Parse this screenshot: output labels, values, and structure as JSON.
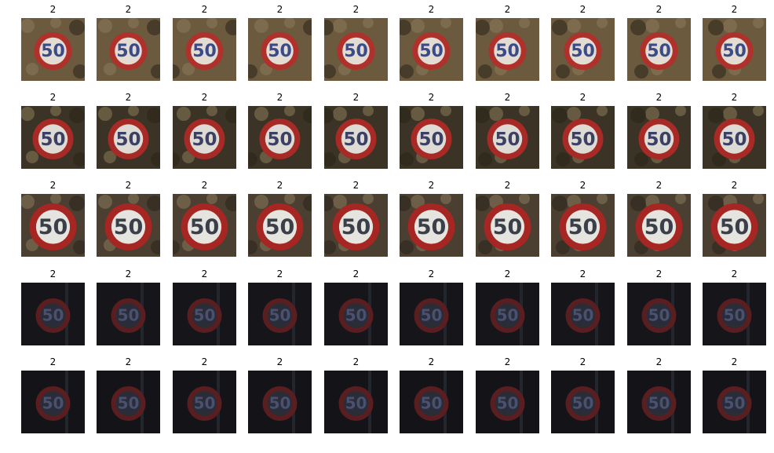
{
  "figure": {
    "rows": [
      {
        "brightness": "bright-noisy",
        "bg": "#6b5a3e",
        "items": [
          {
            "label": "2",
            "sign_text": "50"
          },
          {
            "label": "2",
            "sign_text": "50"
          },
          {
            "label": "2",
            "sign_text": "50"
          },
          {
            "label": "2",
            "sign_text": "50"
          },
          {
            "label": "2",
            "sign_text": "50"
          },
          {
            "label": "2",
            "sign_text": "50"
          },
          {
            "label": "2",
            "sign_text": "50"
          },
          {
            "label": "2",
            "sign_text": "50"
          },
          {
            "label": "2",
            "sign_text": "50"
          },
          {
            "label": "2",
            "sign_text": "50"
          }
        ]
      },
      {
        "brightness": "bright",
        "bg": "#3b3325",
        "items": [
          {
            "label": "2",
            "sign_text": "50"
          },
          {
            "label": "2",
            "sign_text": "50"
          },
          {
            "label": "2",
            "sign_text": "50"
          },
          {
            "label": "2",
            "sign_text": "50"
          },
          {
            "label": "2",
            "sign_text": "50"
          },
          {
            "label": "2",
            "sign_text": "50"
          },
          {
            "label": "2",
            "sign_text": "50"
          },
          {
            "label": "2",
            "sign_text": "50"
          },
          {
            "label": "2",
            "sign_text": "50"
          },
          {
            "label": "2",
            "sign_text": "50"
          }
        ]
      },
      {
        "brightness": "bright-large",
        "bg": "#4a3f31",
        "items": [
          {
            "label": "2",
            "sign_text": "50"
          },
          {
            "label": "2",
            "sign_text": "50"
          },
          {
            "label": "2",
            "sign_text": "50"
          },
          {
            "label": "2",
            "sign_text": "50"
          },
          {
            "label": "2",
            "sign_text": "50"
          },
          {
            "label": "2",
            "sign_text": "50"
          },
          {
            "label": "2",
            "sign_text": "50"
          },
          {
            "label": "2",
            "sign_text": "50"
          },
          {
            "label": "2",
            "sign_text": "50"
          },
          {
            "label": "2",
            "sign_text": "50"
          }
        ]
      },
      {
        "brightness": "dark",
        "bg": "#16161a",
        "items": [
          {
            "label": "2",
            "sign_text": "50"
          },
          {
            "label": "2",
            "sign_text": "50"
          },
          {
            "label": "2",
            "sign_text": "50"
          },
          {
            "label": "2",
            "sign_text": "50"
          },
          {
            "label": "2",
            "sign_text": "50"
          },
          {
            "label": "2",
            "sign_text": "50"
          },
          {
            "label": "2",
            "sign_text": "50"
          },
          {
            "label": "2",
            "sign_text": "50"
          },
          {
            "label": "2",
            "sign_text": "50"
          },
          {
            "label": "2",
            "sign_text": "50"
          }
        ]
      },
      {
        "brightness": "dark",
        "bg": "#141418",
        "items": [
          {
            "label": "2",
            "sign_text": "50"
          },
          {
            "label": "2",
            "sign_text": "50"
          },
          {
            "label": "2",
            "sign_text": "50"
          },
          {
            "label": "2",
            "sign_text": "50"
          },
          {
            "label": "2",
            "sign_text": "50"
          },
          {
            "label": "2",
            "sign_text": "50"
          },
          {
            "label": "2",
            "sign_text": "50"
          },
          {
            "label": "2",
            "sign_text": "50"
          },
          {
            "label": "2",
            "sign_text": "50"
          },
          {
            "label": "2",
            "sign_text": "50"
          }
        ]
      }
    ]
  }
}
